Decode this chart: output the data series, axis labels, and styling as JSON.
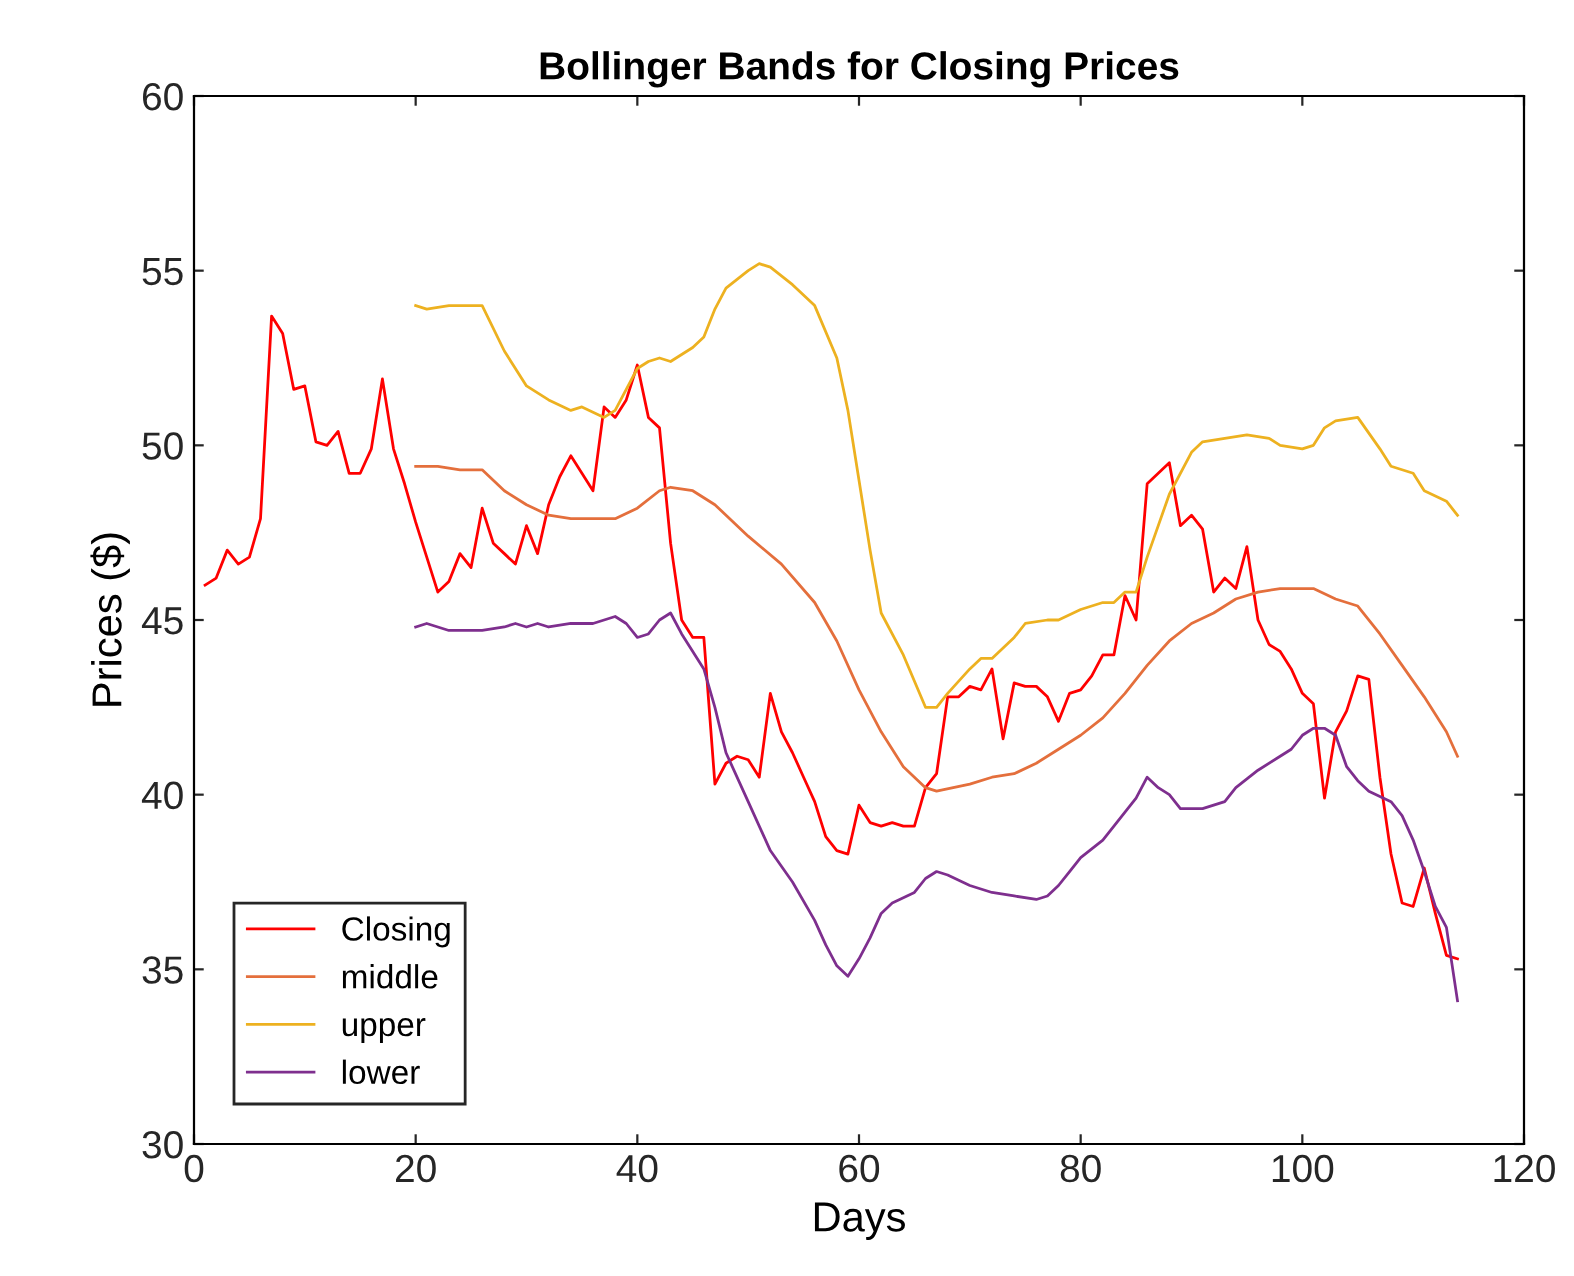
{
  "chart_data": {
    "type": "line",
    "title": "Bollinger Bands for Closing Prices",
    "xlabel": "Days",
    "ylabel": "Prices ($)",
    "xlim": [
      0,
      120
    ],
    "xticks": [
      0,
      20,
      40,
      60,
      80,
      100,
      120
    ],
    "ylim": [
      30,
      60
    ],
    "yticks": [
      30,
      35,
      40,
      45,
      50,
      55,
      60
    ],
    "grid": false,
    "legend": "bottom left",
    "marker": "none",
    "line_style": "solid",
    "series": [
      {
        "name": "Closing",
        "color": "#ff0000",
        "x": [
          1,
          2,
          3,
          4,
          5,
          6,
          7,
          8,
          9,
          10,
          11,
          12,
          13,
          14,
          15,
          16,
          17,
          18,
          19,
          20,
          21,
          22,
          23,
          24,
          25,
          26,
          27,
          28,
          29,
          30,
          31,
          32,
          33,
          34,
          35,
          36,
          37,
          38,
          39,
          40,
          41,
          42,
          43,
          44,
          45,
          46,
          47,
          48,
          49,
          50,
          51,
          52,
          53,
          54,
          55,
          56,
          57,
          58,
          59,
          60,
          61,
          62,
          63,
          64,
          65,
          66,
          67,
          68,
          69,
          70,
          71,
          72,
          73,
          74,
          75,
          76,
          77,
          78,
          79,
          80,
          81,
          82,
          83,
          84,
          85,
          86,
          87,
          88,
          89,
          90,
          91,
          92,
          93,
          94,
          95,
          96,
          97,
          98,
          99,
          100,
          101,
          102,
          103,
          104,
          105,
          106,
          107,
          108,
          109,
          110,
          111,
          112,
          113,
          114
        ],
        "values": [
          46.0,
          46.2,
          47.0,
          46.6,
          46.8,
          47.9,
          53.7,
          53.2,
          51.6,
          51.7,
          50.1,
          50.0,
          50.4,
          49.2,
          49.2,
          49.9,
          51.9,
          49.9,
          48.9,
          47.8,
          46.8,
          45.8,
          46.1,
          46.9,
          46.5,
          48.2,
          47.2,
          46.9,
          46.6,
          47.7,
          46.9,
          48.3,
          49.1,
          49.7,
          49.2,
          48.7,
          51.1,
          50.8,
          51.3,
          52.3,
          50.8,
          50.5,
          47.2,
          45.0,
          44.5,
          44.5,
          40.3,
          40.9,
          41.1,
          41.0,
          40.5,
          42.9,
          41.8,
          41.2,
          40.5,
          39.8,
          38.8,
          38.4,
          38.3,
          39.7,
          39.2,
          39.1,
          39.2,
          39.1,
          39.1,
          40.2,
          40.6,
          42.8,
          42.8,
          43.1,
          43.0,
          43.6,
          41.6,
          43.2,
          43.1,
          43.1,
          42.8,
          42.1,
          42.9,
          43.0,
          43.4,
          44.0,
          44.0,
          45.7,
          45.0,
          48.9,
          49.2,
          49.5,
          47.7,
          48.0,
          47.6,
          45.8,
          46.2,
          45.9,
          47.1,
          45.0,
          44.3,
          44.1,
          43.6,
          42.9,
          42.6,
          39.9,
          41.8,
          42.4,
          43.4,
          43.3,
          40.5,
          38.3,
          36.9,
          36.8,
          37.9,
          36.6,
          35.4,
          35.3
        ]
      },
      {
        "name": "middle",
        "color": "#e46f3c",
        "x": [
          20,
          22,
          24,
          26,
          28,
          30,
          32,
          34,
          36,
          38,
          40,
          42,
          43,
          45,
          47,
          50,
          53,
          56,
          58,
          60,
          62,
          64,
          66,
          67,
          70,
          72,
          74,
          76,
          78,
          80,
          82,
          84,
          86,
          88,
          90,
          92,
          94,
          96,
          98,
          100,
          101,
          103,
          105,
          107,
          109,
          111,
          113,
          114
        ],
        "values": [
          49.4,
          49.4,
          49.3,
          49.3,
          48.7,
          48.3,
          48.0,
          47.9,
          47.9,
          47.9,
          48.2,
          48.7,
          48.8,
          48.7,
          48.3,
          47.4,
          46.6,
          45.5,
          44.4,
          43.0,
          41.8,
          40.8,
          40.2,
          40.1,
          40.3,
          40.5,
          40.6,
          40.9,
          41.3,
          41.7,
          42.2,
          42.9,
          43.7,
          44.4,
          44.9,
          45.2,
          45.6,
          45.8,
          45.9,
          45.9,
          45.9,
          45.6,
          45.4,
          44.6,
          43.7,
          42.8,
          41.8,
          41.1
        ]
      },
      {
        "name": "upper",
        "color": "#edb120",
        "x": [
          20,
          21,
          23,
          26,
          28,
          30,
          32,
          34,
          35,
          37,
          38,
          39,
          40,
          41,
          42,
          43,
          45,
          46,
          47,
          48,
          50,
          51,
          52,
          54,
          56,
          58,
          59,
          60,
          61,
          62,
          64,
          66,
          67,
          68,
          70,
          71,
          72,
          74,
          75,
          77,
          78,
          80,
          82,
          83,
          84,
          85,
          86,
          88,
          90,
          91,
          93,
          95,
          97,
          98,
          100,
          101,
          102,
          103,
          105,
          107,
          108,
          110,
          111,
          113,
          114
        ],
        "values": [
          54.0,
          53.9,
          54.0,
          54.0,
          52.7,
          51.7,
          51.3,
          51.0,
          51.1,
          50.8,
          51.0,
          51.6,
          52.2,
          52.4,
          52.5,
          52.4,
          52.8,
          53.1,
          53.9,
          54.5,
          55.0,
          55.2,
          55.1,
          54.6,
          54.0,
          52.5,
          51.0,
          49.0,
          47.0,
          45.2,
          44.0,
          42.5,
          42.5,
          42.9,
          43.6,
          43.9,
          43.9,
          44.5,
          44.9,
          45.0,
          45.0,
          45.3,
          45.5,
          45.5,
          45.8,
          45.8,
          46.8,
          48.6,
          49.8,
          50.1,
          50.2,
          50.3,
          50.2,
          50.0,
          49.9,
          50.0,
          50.5,
          50.7,
          50.8,
          49.9,
          49.4,
          49.2,
          48.7,
          48.4,
          48.0
        ]
      },
      {
        "name": "lower",
        "color": "#7e2f8e",
        "x": [
          20,
          21,
          22,
          23,
          24,
          26,
          28,
          29,
          30,
          31,
          32,
          34,
          36,
          37,
          38,
          39,
          40,
          41,
          42,
          43,
          44,
          46,
          47,
          48,
          50,
          52,
          54,
          56,
          57,
          58,
          59,
          60,
          61,
          62,
          63,
          65,
          66,
          67,
          68,
          70,
          72,
          74,
          76,
          77,
          78,
          79,
          80,
          82,
          84,
          85,
          86,
          87,
          88,
          89,
          91,
          92,
          93,
          94,
          96,
          98,
          99,
          100,
          101,
          102,
          103,
          104,
          105,
          106,
          108,
          109,
          110,
          111,
          112,
          113,
          114
        ],
        "values": [
          44.8,
          44.9,
          44.8,
          44.7,
          44.7,
          44.7,
          44.8,
          44.9,
          44.8,
          44.9,
          44.8,
          44.9,
          44.9,
          45.0,
          45.1,
          44.9,
          44.5,
          44.6,
          45.0,
          45.2,
          44.6,
          43.6,
          42.5,
          41.2,
          39.8,
          38.4,
          37.5,
          36.4,
          35.7,
          35.1,
          34.8,
          35.3,
          35.9,
          36.6,
          36.9,
          37.2,
          37.6,
          37.8,
          37.7,
          37.4,
          37.2,
          37.1,
          37.0,
          37.1,
          37.4,
          37.8,
          38.2,
          38.7,
          39.5,
          39.9,
          40.5,
          40.2,
          40.0,
          39.6,
          39.6,
          39.7,
          39.8,
          40.2,
          40.7,
          41.1,
          41.3,
          41.7,
          41.9,
          41.9,
          41.7,
          40.8,
          40.4,
          40.1,
          39.8,
          39.4,
          38.7,
          37.8,
          36.8,
          36.2,
          34.1
        ]
      }
    ]
  }
}
